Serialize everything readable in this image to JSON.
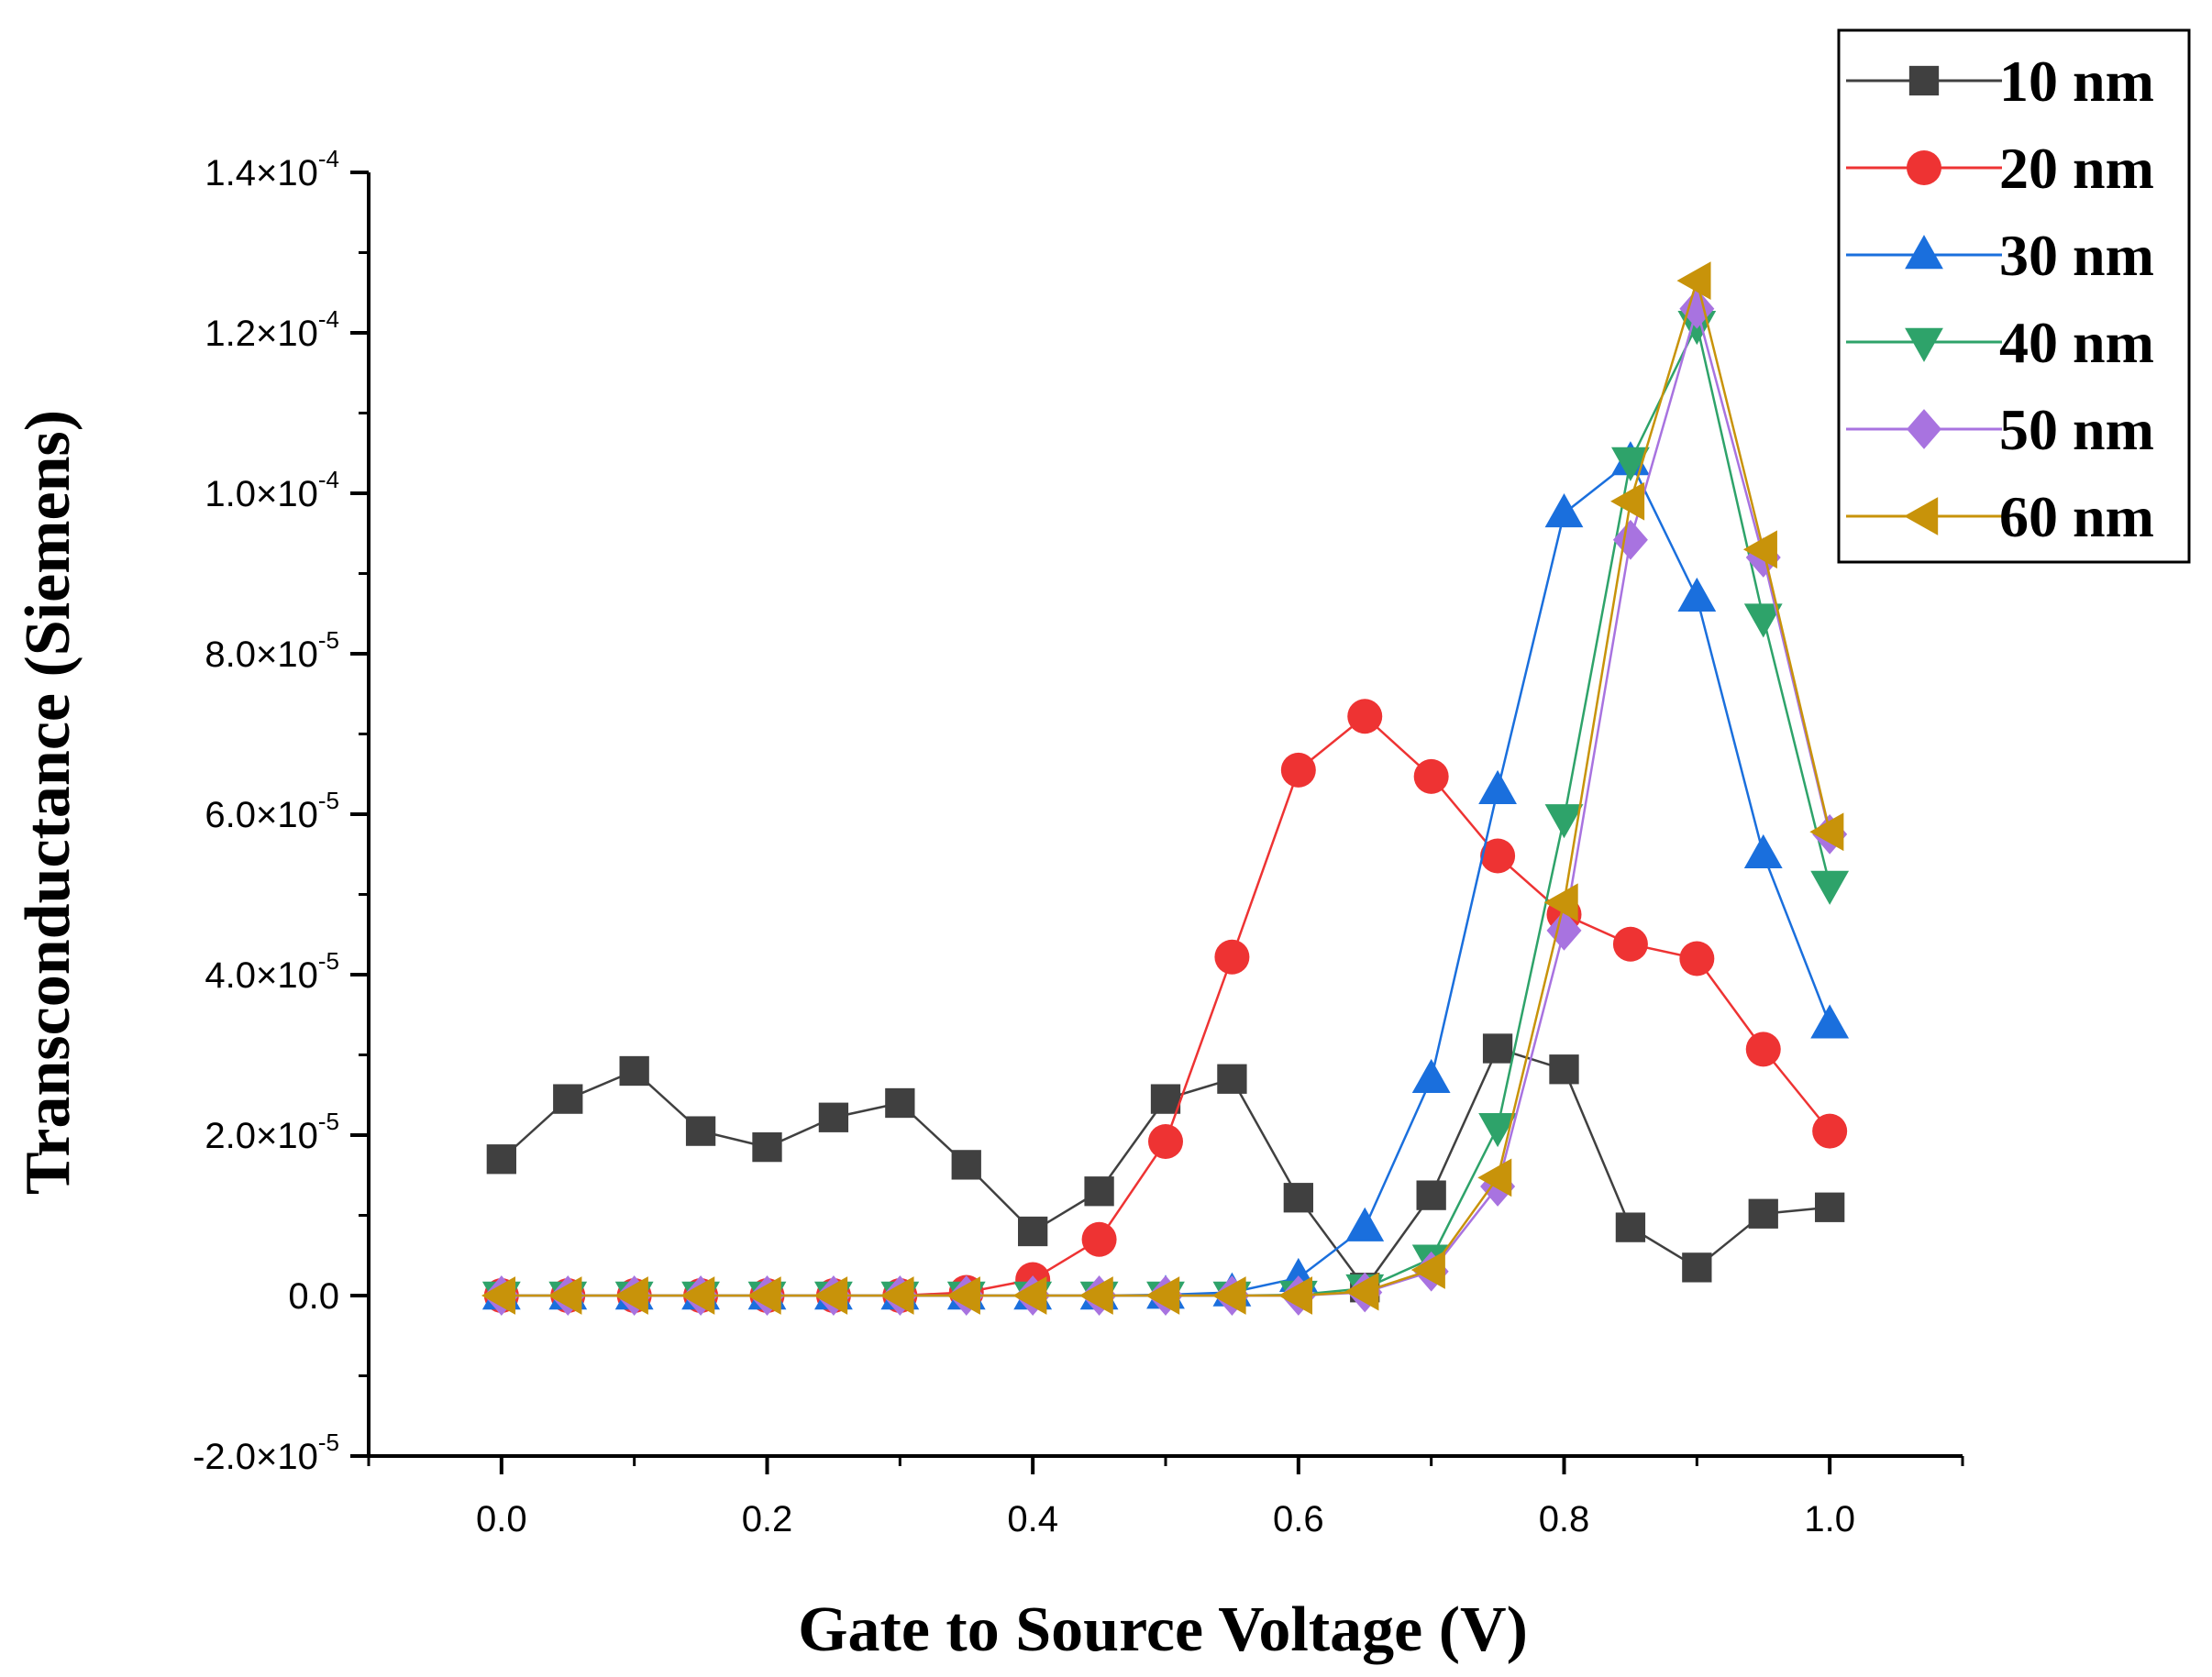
{
  "chart_data": {
    "type": "line",
    "xlabel": "Gate to Source Voltage (V)",
    "ylabel": "Transconductance (Siemens)",
    "xlim": [
      -0.1,
      1.1
    ],
    "ylim": [
      -2e-05,
      0.00014
    ],
    "x_ticks": [
      0.0,
      0.2,
      0.4,
      0.6,
      0.8,
      1.0
    ],
    "x_tick_labels": [
      "0.0",
      "0.2",
      "0.4",
      "0.6",
      "0.8",
      "1.0"
    ],
    "y_ticks": [
      -2e-05,
      0.0,
      2e-05,
      4e-05,
      6e-05,
      8e-05,
      0.0001,
      0.00012,
      0.00014
    ],
    "y_tick_labels": [
      {
        "mantissa": "-2.0×10",
        "exp": "-5"
      },
      {
        "mantissa": "0.0",
        "exp": ""
      },
      {
        "mantissa": "2.0×10",
        "exp": "-5"
      },
      {
        "mantissa": "4.0×10",
        "exp": "-5"
      },
      {
        "mantissa": "6.0×10",
        "exp": "-5"
      },
      {
        "mantissa": "8.0×10",
        "exp": "-5"
      },
      {
        "mantissa": "1.0×10",
        "exp": "-4"
      },
      {
        "mantissa": "1.2×10",
        "exp": "-4"
      },
      {
        "mantissa": "1.4×10",
        "exp": "-4"
      }
    ],
    "x": [
      0.0,
      0.05,
      0.1,
      0.15,
      0.2,
      0.25,
      0.3,
      0.35,
      0.4,
      0.45,
      0.5,
      0.55,
      0.6,
      0.65,
      0.7,
      0.75,
      0.8,
      0.85,
      0.9,
      0.95,
      1.0
    ],
    "series": [
      {
        "name": "10 nm",
        "color": "#404040",
        "marker": "square",
        "values": [
          1.7e-05,
          2.45e-05,
          2.8e-05,
          2.05e-05,
          1.85e-05,
          2.22e-05,
          2.4e-05,
          1.63e-05,
          8e-06,
          1.3e-05,
          2.45e-05,
          2.7e-05,
          1.22e-05,
          1e-06,
          1.25e-05,
          3.08e-05,
          2.82e-05,
          8.5e-06,
          3.5e-06,
          1.02e-05,
          1.1e-05
        ]
      },
      {
        "name": "20 nm",
        "color": "#ee3333",
        "marker": "circle",
        "values": [
          0,
          0,
          0,
          0,
          0,
          0,
          0,
          4e-07,
          2e-06,
          7e-06,
          1.92e-05,
          4.22e-05,
          6.55e-05,
          7.22e-05,
          6.47e-05,
          5.48e-05,
          4.75e-05,
          4.38e-05,
          4.2e-05,
          3.07e-05,
          2.05e-05
        ]
      },
      {
        "name": "30 nm",
        "color": "#1a6fdd",
        "marker": "triangle-up",
        "values": [
          0,
          0,
          0,
          0,
          0,
          0,
          0,
          0,
          0,
          0,
          1e-07,
          4e-07,
          2.2e-06,
          8.5e-06,
          2.7e-05,
          6.3e-05,
          9.75e-05,
          0.000104,
          8.7e-05,
          5.5e-05,
          3.38e-05
        ]
      },
      {
        "name": "40 nm",
        "color": "#2ea36a",
        "marker": "triangle-down",
        "values": [
          0,
          0,
          0,
          0,
          0,
          0,
          0,
          0,
          0,
          0,
          0,
          0,
          1e-07,
          9e-07,
          4.6e-06,
          2.1e-05,
          5.95e-05,
          0.000104,
          0.000121,
          8.45e-05,
          5.12e-05
        ]
      },
      {
        "name": "50 nm",
        "color": "#a873e0",
        "marker": "diamond",
        "values": [
          0,
          0,
          0,
          0,
          0,
          0,
          0,
          0,
          0,
          0,
          0,
          0,
          0,
          4e-07,
          3e-06,
          1.36e-05,
          4.55e-05,
          9.42e-05,
          0.000123,
          9.2e-05,
          5.75e-05
        ]
      },
      {
        "name": "60 nm",
        "color": "#c8930a",
        "marker": "triangle-left",
        "values": [
          0,
          0,
          0,
          0,
          0,
          0,
          0,
          0,
          0,
          0,
          0,
          0,
          0,
          5e-07,
          3.2e-06,
          1.47e-05,
          4.9e-05,
          9.9e-05,
          0.0001265,
          9.3e-05,
          5.78e-05
        ]
      }
    ]
  }
}
